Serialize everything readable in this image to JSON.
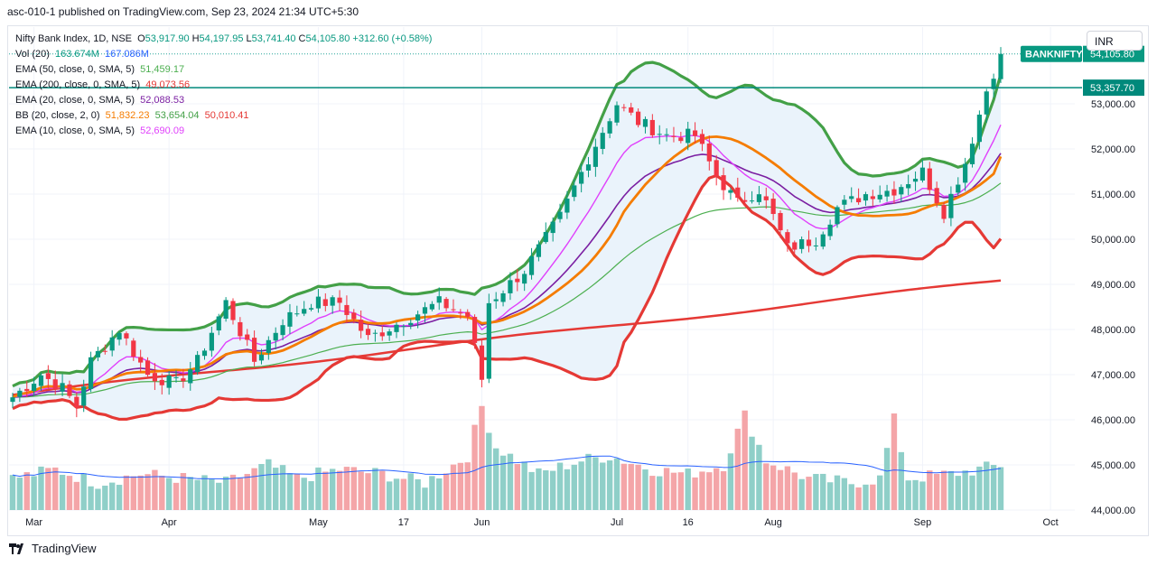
{
  "header": {
    "publish_line": "asc-010-1 published on TradingView.com, Sep 23, 2024 21:34 UTC+5:30"
  },
  "currency_button": "INR",
  "legend": [
    {
      "name": "Nifty Bank Index, 1D, NSE",
      "parts": [
        {
          "k": "O",
          "v": "53,917.90"
        },
        {
          "k": "H",
          "v": "54,197.95"
        },
        {
          "k": "L",
          "v": "53,741.40"
        },
        {
          "k": "C",
          "v": "54,105.80"
        },
        {
          "k": "",
          "v": "+312.60 (+0.58%)"
        }
      ],
      "color": "#089981"
    },
    {
      "name": "Vol (20)",
      "values": [
        "163.674M",
        "167.086M"
      ],
      "colors": [
        "#089981",
        "#2962ff"
      ]
    },
    {
      "name": "EMA (50, close, 0, SMA, 5)",
      "values": [
        "51,459.17"
      ],
      "colors": [
        "#4caf50"
      ]
    },
    {
      "name": "EMA (200, close, 0, SMA, 5)",
      "values": [
        "49,073.56"
      ],
      "colors": [
        "#e53935"
      ]
    },
    {
      "name": "EMA (20, close, 0, SMA, 5)",
      "values": [
        "52,088.53"
      ],
      "colors": [
        "#7b1fa2"
      ]
    },
    {
      "name": "BB (20, close, 2, 0)",
      "values": [
        "51,832.23",
        "53,654.04",
        "50,010.41"
      ],
      "colors": [
        "#f57c00",
        "#43a047",
        "#e53935"
      ]
    },
    {
      "name": "EMA (10, close, 0, SMA, 5)",
      "values": [
        "52,690.09"
      ],
      "colors": [
        "#e040fb"
      ]
    }
  ],
  "chart_data": {
    "type": "candlestick",
    "title": "Nifty Bank Index, 1D, NSE",
    "symbol_badge": "BANKNIFTY",
    "last_price": "54,105.80",
    "horizontal_line_price": 53357.7,
    "horizontal_line_label": "53,357.70",
    "y_ticks": [
      44000,
      45000,
      46000,
      47000,
      48000,
      49000,
      50000,
      51000,
      52000,
      53000
    ],
    "y_tick_labels": [
      "44,000.00",
      "45,000.00",
      "46,000.00",
      "47,000.00",
      "48,000.00",
      "49,000.00",
      "50,000.00",
      "51,000.00",
      "52,000.00",
      "53,000.00"
    ],
    "ylim": [
      44000,
      54400
    ],
    "x_labels": [
      "Mar",
      "Apr",
      "May",
      "17",
      "Jun",
      "Jul",
      "16",
      "Aug",
      "Sep",
      "Oct"
    ],
    "x_label_index": [
      3,
      22,
      43,
      55,
      66,
      85,
      95,
      107,
      128,
      146
    ],
    "bar_count": 140,
    "close_anchors": [
      [
        0,
        46500
      ],
      [
        4,
        47000
      ],
      [
        7,
        46700
      ],
      [
        9,
        46300
      ],
      [
        11,
        47300
      ],
      [
        15,
        48000
      ],
      [
        19,
        47000
      ],
      [
        23,
        46800
      ],
      [
        26,
        47300
      ],
      [
        30,
        48600
      ],
      [
        34,
        47300
      ],
      [
        38,
        48200
      ],
      [
        42,
        48600
      ],
      [
        46,
        48600
      ],
      [
        50,
        47800
      ],
      [
        55,
        48200
      ],
      [
        60,
        48600
      ],
      [
        64,
        48300
      ],
      [
        66,
        46900
      ],
      [
        67,
        48600
      ],
      [
        72,
        49300
      ],
      [
        77,
        50500
      ],
      [
        81,
        51800
      ],
      [
        85,
        53000
      ],
      [
        88,
        52600
      ],
      [
        92,
        52300
      ],
      [
        96,
        52300
      ],
      [
        99,
        51400
      ],
      [
        102,
        50800
      ],
      [
        105,
        51100
      ],
      [
        107,
        50500
      ],
      [
        109,
        49800
      ],
      [
        113,
        50000
      ],
      [
        116,
        50700
      ],
      [
        120,
        51000
      ],
      [
        124,
        51100
      ],
      [
        128,
        51500
      ],
      [
        131,
        50600
      ],
      [
        134,
        51700
      ],
      [
        137,
        53300
      ],
      [
        139,
        54106
      ]
    ],
    "volume_anchors": [
      [
        0,
        44700
      ],
      [
        6,
        44900
      ],
      [
        12,
        44600
      ],
      [
        18,
        44800
      ],
      [
        24,
        44700
      ],
      [
        30,
        44600
      ],
      [
        36,
        45000
      ],
      [
        40,
        44700
      ],
      [
        46,
        44900
      ],
      [
        52,
        44800
      ],
      [
        58,
        44600
      ],
      [
        64,
        45200
      ],
      [
        66,
        46300
      ],
      [
        68,
        45400
      ],
      [
        74,
        44800
      ],
      [
        80,
        45100
      ],
      [
        84,
        45200
      ],
      [
        90,
        44900
      ],
      [
        95,
        44800
      ],
      [
        100,
        45000
      ],
      [
        103,
        46100
      ],
      [
        106,
        45100
      ],
      [
        112,
        44700
      ],
      [
        118,
        44600
      ],
      [
        122,
        44700
      ],
      [
        124,
        46000
      ],
      [
        126,
        44700
      ],
      [
        132,
        44800
      ],
      [
        136,
        44900
      ],
      [
        139,
        45000
      ]
    ],
    "series": [
      {
        "name": "BB (20, close, 2, 0)",
        "role": "upper",
        "color": "#43a047",
        "last": 53654.04
      },
      {
        "name": "BB (20, close, 2, 0)",
        "role": "basis",
        "color": "#f57c00",
        "last": 51832.23
      },
      {
        "name": "BB (20, close, 2, 0)",
        "role": "lower",
        "color": "#e53935",
        "last": 50010.41
      },
      {
        "name": "EMA (10, close, 0, SMA, 5)",
        "color": "#e040fb",
        "last": 52690.09
      },
      {
        "name": "EMA (20, close, 0, SMA, 5)",
        "color": "#7b1fa2",
        "last": 52088.53
      },
      {
        "name": "EMA (50, close, 0, SMA, 5)",
        "color": "#4caf50",
        "last": 51459.17
      },
      {
        "name": "EMA (200, close, 0, SMA, 5)",
        "color": "#e53935",
        "last": 49073.56
      },
      {
        "name": "Vol (20)",
        "color": "#2962ff",
        "last": "167.086M"
      }
    ],
    "colors": {
      "up": "#089981",
      "down": "#f23645",
      "vol_up": "#8fcfc8",
      "vol_down": "#f4a5a8",
      "band_fill": "#eaf3fb",
      "grid": "#f0f3fa"
    },
    "grid": true
  },
  "footer": {
    "brand": "TradingView"
  }
}
